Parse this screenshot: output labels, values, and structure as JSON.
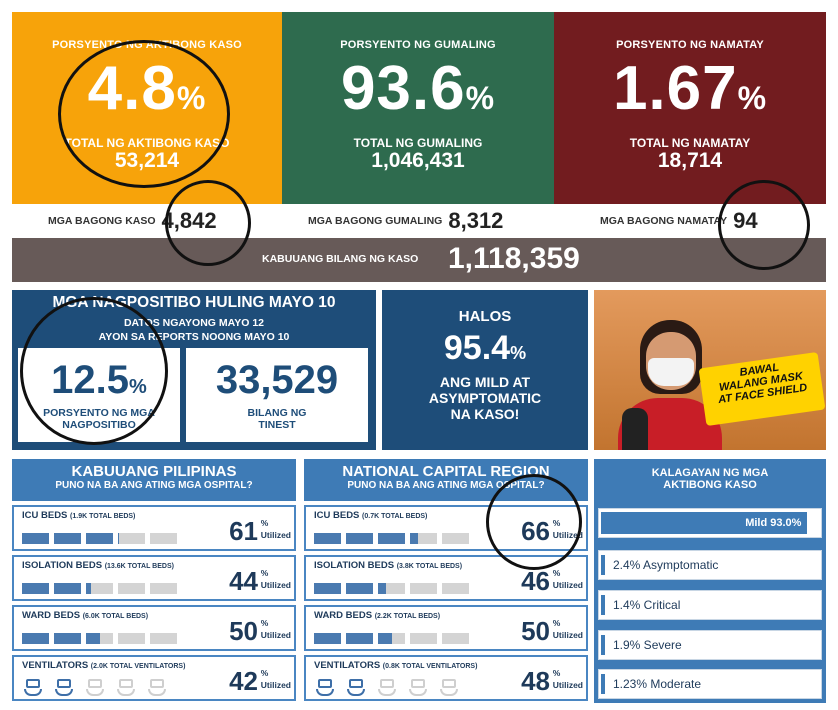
{
  "top_cards": {
    "active": {
      "label": "PORSYENTO NG AKTIBONG KASO",
      "value": "4.8",
      "unit": "%",
      "total_label": "TOTAL NG AKTIBONG KASO",
      "total": "53,214",
      "color": "#f7a30a"
    },
    "recovered": {
      "label": "PORSYENTO NG GUMALING",
      "value": "93.6",
      "unit": "%",
      "total_label": "TOTAL NG GUMALING",
      "total": "1,046,431",
      "color": "#2e6b4e"
    },
    "deaths": {
      "label": "PORSYENTO NG NAMATAY",
      "value": "1.67",
      "unit": "%",
      "total_label": "TOTAL NG NAMATAY",
      "total": "18,714",
      "color": "#721c1f"
    }
  },
  "new_cases": {
    "cases_label": "MGA BAGONG KASO",
    "cases": "4,842",
    "recovered_label": "MGA BAGONG GUMALING",
    "recovered": "8,312",
    "deaths_label": "MGA BAGONG NAMATAY",
    "deaths": "94"
  },
  "total_cases": {
    "label": "KABUUANG BILANG NG KASO",
    "value": "1,118,359"
  },
  "positivity": {
    "title": "MGA NAGPOSITIBO HULING MAYO 10",
    "line1": "DATOS NGAYONG MAYO 12",
    "line2": "AYON SA REPORTS NOONG MAYO 10",
    "rate": "12.5",
    "rate_unit": "%",
    "rate_label_1": "PORSYENTO NG MGA",
    "rate_label_2": "NAGPOSITIBO",
    "tests": "33,529",
    "tests_label_1": "BILANG NG",
    "tests_label_2": "TINEST"
  },
  "mild": {
    "l1": "HALOS",
    "value": "95.4",
    "unit": "%",
    "l2": "ANG MILD AT",
    "l3": "ASYMPTOMATIC",
    "l4": "NA KASO!"
  },
  "banner": {
    "line1": "BAWAL",
    "line2": "WALANG MASK",
    "line3": "AT FACE SHIELD"
  },
  "ph": {
    "title": "KABUUANG PILIPINAS",
    "subtitle": "PUNO NA BA ANG ATING MGA OSPITAL?",
    "rows": [
      {
        "name": "ICU BEDS",
        "total": "(1.9K TOTAL BEDS)",
        "pct": "61",
        "fill": 0.61
      },
      {
        "name": "ISOLATION BEDS",
        "total": "(13.6K TOTAL BEDS)",
        "pct": "44",
        "fill": 0.44
      },
      {
        "name": "WARD BEDS",
        "total": "(6.0K TOTAL BEDS)",
        "pct": "50",
        "fill": 0.5
      },
      {
        "name": "VENTILATORS",
        "total": "(2.0K TOTAL VENTILATORS)",
        "pct": "42",
        "fill": 0.42
      }
    ]
  },
  "ncr": {
    "title": "NATIONAL CAPITAL REGION",
    "subtitle": "PUNO NA BA ANG ATING MGA OSPITAL?",
    "rows": [
      {
        "name": "ICU BEDS",
        "total": "(0.7K TOTAL BEDS)",
        "pct": "66",
        "fill": 0.66
      },
      {
        "name": "ISOLATION BEDS",
        "total": "(3.8K TOTAL BEDS)",
        "pct": "46",
        "fill": 0.46
      },
      {
        "name": "WARD BEDS",
        "total": "(2.2K TOTAL BEDS)",
        "pct": "50",
        "fill": 0.5
      },
      {
        "name": "VENTILATORS",
        "total": "(0.8K TOTAL VENTILATORS)",
        "pct": "48",
        "fill": 0.48
      }
    ]
  },
  "pct_sign": "%",
  "utilized": "Utilized",
  "kalagayan": {
    "title_1": "KALAGAYAN NG MGA",
    "title_2": "AKTIBONG KASO",
    "mild": {
      "label": "Mild 93.0%",
      "fill": 0.93
    },
    "items": [
      "2.4% Asymptomatic",
      "1.4% Critical",
      "1.9% Severe",
      "1.23% Moderate"
    ]
  }
}
